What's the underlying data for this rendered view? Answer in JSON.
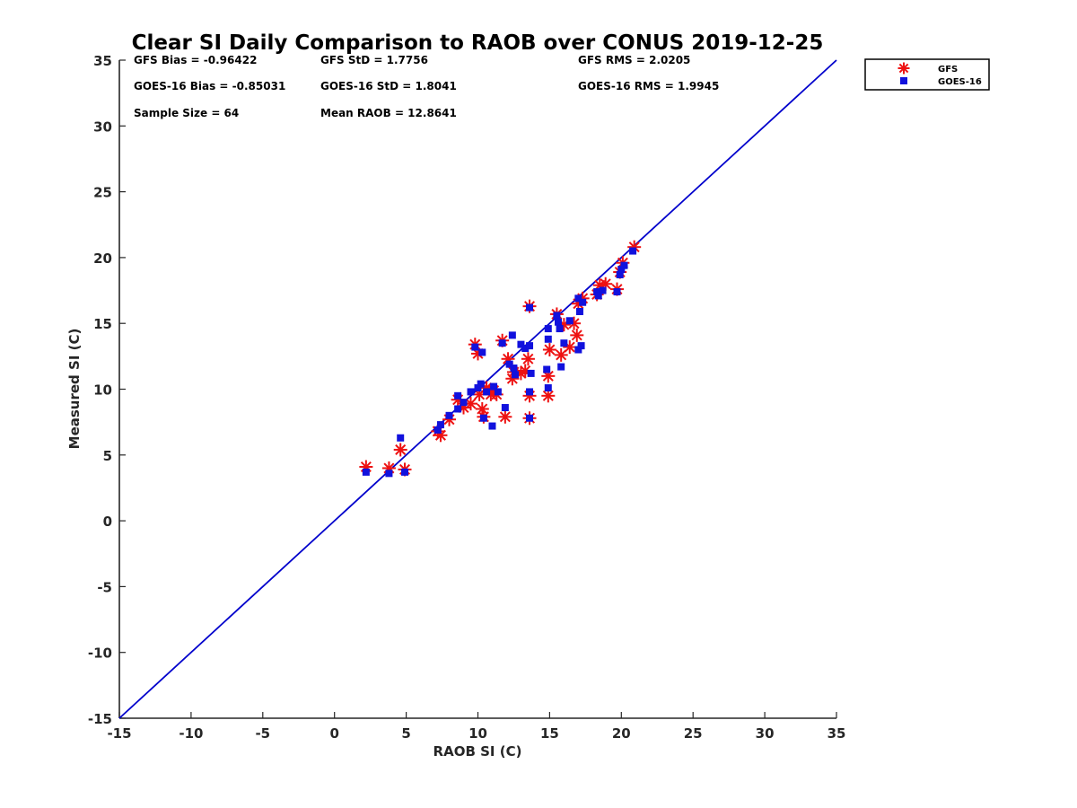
{
  "chart_data": {
    "type": "scatter",
    "title": "Clear SI Daily Comparison to RAOB over CONUS 2019-12-25",
    "xlabel": "RAOB SI (C)",
    "ylabel": "Measured SI (C)",
    "xlim": [
      -15,
      35
    ],
    "ylim": [
      -15,
      35
    ],
    "xticks": [
      -15,
      -10,
      -5,
      0,
      5,
      10,
      15,
      20,
      25,
      30,
      35
    ],
    "yticks": [
      -15,
      -10,
      -5,
      0,
      5,
      10,
      15,
      20,
      25,
      30,
      35
    ],
    "grid": false,
    "legend_position": "outside-top-right",
    "reference_line": {
      "type": "identity",
      "color": "#0000cc"
    },
    "stats": [
      {
        "text": "GFS Bias = -0.96422"
      },
      {
        "text": "GFS StD = 1.7756"
      },
      {
        "text": "GFS RMS = 2.0205"
      },
      {
        "text": "GOES-16 Bias = -0.85031"
      },
      {
        "text": "GOES-16 StD = 1.8041"
      },
      {
        "text": "GOES-16 RMS = 1.9945"
      },
      {
        "text": "Sample Size = 64"
      },
      {
        "text": "Mean RAOB = 12.8641"
      }
    ],
    "series": [
      {
        "name": "GFS",
        "marker": "asterisk",
        "color": "#ee1111",
        "points": [
          [
            2.2,
            4.1
          ],
          [
            3.8,
            4.0
          ],
          [
            4.6,
            5.4
          ],
          [
            4.9,
            3.9
          ],
          [
            7.2,
            6.8
          ],
          [
            7.4,
            6.5
          ],
          [
            8.0,
            7.7
          ],
          [
            8.6,
            9.2
          ],
          [
            9.0,
            8.6
          ],
          [
            9.5,
            8.9
          ],
          [
            9.8,
            13.4
          ],
          [
            10.0,
            12.7
          ],
          [
            10.1,
            9.6
          ],
          [
            10.3,
            8.5
          ],
          [
            10.4,
            7.9
          ],
          [
            10.6,
            10.1
          ],
          [
            10.9,
            9.6
          ],
          [
            11.1,
            9.9
          ],
          [
            11.3,
            9.6
          ],
          [
            11.7,
            13.7
          ],
          [
            11.9,
            7.9
          ],
          [
            12.1,
            12.3
          ],
          [
            12.4,
            10.8
          ],
          [
            12.5,
            11.3
          ],
          [
            13.0,
            11.2
          ],
          [
            13.3,
            11.4
          ],
          [
            13.5,
            12.3
          ],
          [
            13.6,
            16.3
          ],
          [
            13.6,
            9.5
          ],
          [
            13.6,
            7.8
          ],
          [
            14.9,
            11.0
          ],
          [
            14.9,
            9.5
          ],
          [
            15.0,
            13.0
          ],
          [
            15.5,
            15.7
          ],
          [
            15.8,
            12.6
          ],
          [
            16.0,
            14.9
          ],
          [
            16.4,
            13.2
          ],
          [
            16.7,
            15.0
          ],
          [
            16.9,
            14.1
          ],
          [
            17.0,
            16.5
          ],
          [
            17.3,
            16.9
          ],
          [
            18.3,
            17.2
          ],
          [
            18.5,
            17.9
          ],
          [
            18.9,
            18.0
          ],
          [
            19.7,
            17.6
          ],
          [
            19.9,
            18.9
          ],
          [
            20.1,
            19.6
          ],
          [
            20.9,
            20.8
          ]
        ]
      },
      {
        "name": "GOES-16",
        "marker": "square",
        "color": "#1111dd",
        "points": [
          [
            2.2,
            3.7
          ],
          [
            3.8,
            3.6
          ],
          [
            4.6,
            6.3
          ],
          [
            4.9,
            3.7
          ],
          [
            7.2,
            6.9
          ],
          [
            7.4,
            7.3
          ],
          [
            8.0,
            8.0
          ],
          [
            8.6,
            9.5
          ],
          [
            8.6,
            8.5
          ],
          [
            9.0,
            9.0
          ],
          [
            9.5,
            9.8
          ],
          [
            9.8,
            13.2
          ],
          [
            10.0,
            10.1
          ],
          [
            10.2,
            10.4
          ],
          [
            10.3,
            12.8
          ],
          [
            10.4,
            7.8
          ],
          [
            10.6,
            9.8
          ],
          [
            11.0,
            7.2
          ],
          [
            11.1,
            10.2
          ],
          [
            11.4,
            9.8
          ],
          [
            11.7,
            13.5
          ],
          [
            11.9,
            8.6
          ],
          [
            12.2,
            11.9
          ],
          [
            12.4,
            14.1
          ],
          [
            12.5,
            11.6
          ],
          [
            12.6,
            11.1
          ],
          [
            13.0,
            13.4
          ],
          [
            13.3,
            13.1
          ],
          [
            13.6,
            13.3
          ],
          [
            13.6,
            16.2
          ],
          [
            13.6,
            9.8
          ],
          [
            13.6,
            7.8
          ],
          [
            13.7,
            11.2
          ],
          [
            14.8,
            11.5
          ],
          [
            14.9,
            14.6
          ],
          [
            14.9,
            10.1
          ],
          [
            14.9,
            13.8
          ],
          [
            15.5,
            15.6
          ],
          [
            15.6,
            15.1
          ],
          [
            15.7,
            14.6
          ],
          [
            15.8,
            11.7
          ],
          [
            16.0,
            13.5
          ],
          [
            16.4,
            15.2
          ],
          [
            17.0,
            13.0
          ],
          [
            17.0,
            16.9
          ],
          [
            17.1,
            15.9
          ],
          [
            17.2,
            13.3
          ],
          [
            17.3,
            16.6
          ],
          [
            18.3,
            17.4
          ],
          [
            18.4,
            17.1
          ],
          [
            18.7,
            17.5
          ],
          [
            19.7,
            17.4
          ],
          [
            19.9,
            18.7
          ],
          [
            20.0,
            19.1
          ],
          [
            20.2,
            19.4
          ],
          [
            20.8,
            20.5
          ]
        ]
      }
    ]
  }
}
